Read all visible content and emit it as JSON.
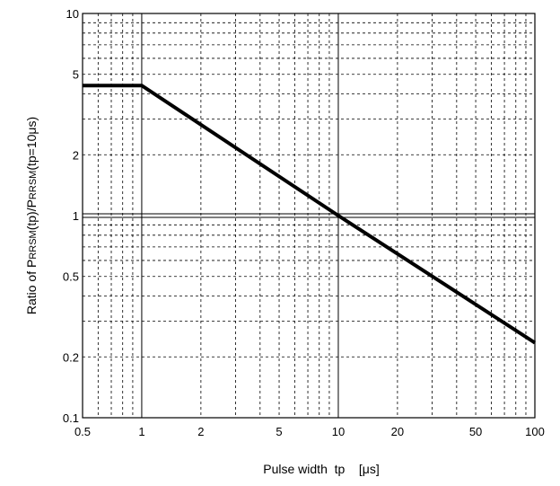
{
  "chart_data": {
    "type": "line",
    "x_scale": "log",
    "y_scale": "log",
    "xlim": [
      0.5,
      100
    ],
    "ylim": [
      0.1,
      10
    ],
    "grid": true,
    "x_ticks": [
      {
        "value": 0.5,
        "label": "0.5"
      },
      {
        "value": 1,
        "label": "1"
      },
      {
        "value": 2,
        "label": "2"
      },
      {
        "value": 5,
        "label": "5"
      },
      {
        "value": 10,
        "label": "10"
      },
      {
        "value": 20,
        "label": "20"
      },
      {
        "value": 50,
        "label": "50"
      },
      {
        "value": 100,
        "label": "100"
      }
    ],
    "y_ticks": [
      {
        "value": 0.1,
        "label": "0.1"
      },
      {
        "value": 0.2,
        "label": "0.2"
      },
      {
        "value": 0.5,
        "label": "0.5"
      },
      {
        "value": 1,
        "label": "1"
      },
      {
        "value": 2,
        "label": "2"
      },
      {
        "value": 5,
        "label": "5"
      },
      {
        "value": 10,
        "label": "10"
      }
    ],
    "xlabel": "Pulse width  tp    [μs]",
    "ylabel": {
      "parts": [
        {
          "text": "Ratio of P",
          "sub": false
        },
        {
          "text": "RRSM",
          "sub": true
        },
        {
          "text": "(tp)/P",
          "sub": false
        },
        {
          "text": "RRSM",
          "sub": true
        },
        {
          "text": "(tp=10μs)",
          "sub": false
        }
      ]
    },
    "series": [
      {
        "points": [
          {
            "x": 0.5,
            "y": 4.4
          },
          {
            "x": 1,
            "y": 4.4
          },
          {
            "x": 10,
            "y": 1.0
          },
          {
            "x": 100,
            "y": 0.235
          }
        ]
      }
    ]
  }
}
